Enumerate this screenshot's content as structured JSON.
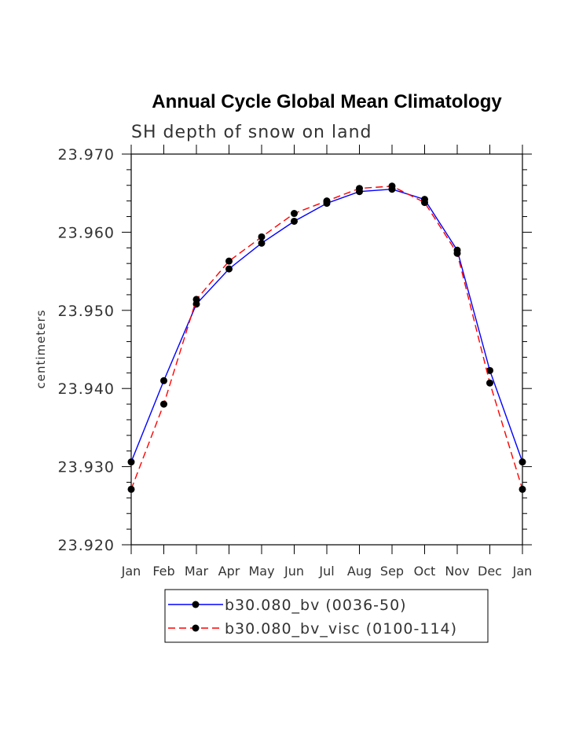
{
  "chart_data": {
    "type": "line",
    "title": "Annual Cycle Global Mean Climatology",
    "subtitle": "SH depth of snow on land",
    "xlabel": "",
    "ylabel": "centimeters",
    "categories": [
      "Jan",
      "Feb",
      "Mar",
      "Apr",
      "May",
      "Jun",
      "Jul",
      "Aug",
      "Sep",
      "Oct",
      "Nov",
      "Dec",
      "Jan"
    ],
    "ylim": [
      23.92,
      23.97
    ],
    "yticks": [
      "23.920",
      "23.930",
      "23.940",
      "23.950",
      "23.960",
      "23.970"
    ],
    "series": [
      {
        "name": "b30.080_bv (0036-50)",
        "color": "#0000ff",
        "line_style": "solid",
        "marker": "filled-circle",
        "values": [
          23.9306,
          23.941,
          23.9508,
          23.9553,
          23.9586,
          23.9614,
          23.9637,
          23.9652,
          23.9655,
          23.9642,
          23.9577,
          23.9423,
          23.9306
        ]
      },
      {
        "name": "b30.080_bv_visc (0100-114)",
        "color": "#ff0000",
        "line_style": "dashed",
        "marker": "filled-circle",
        "values": [
          23.9271,
          23.938,
          23.9514,
          23.9563,
          23.9594,
          23.9624,
          23.964,
          23.9656,
          23.9659,
          23.9638,
          23.9573,
          23.9407,
          23.9271
        ]
      }
    ],
    "grid": false,
    "legend": "bottom"
  }
}
